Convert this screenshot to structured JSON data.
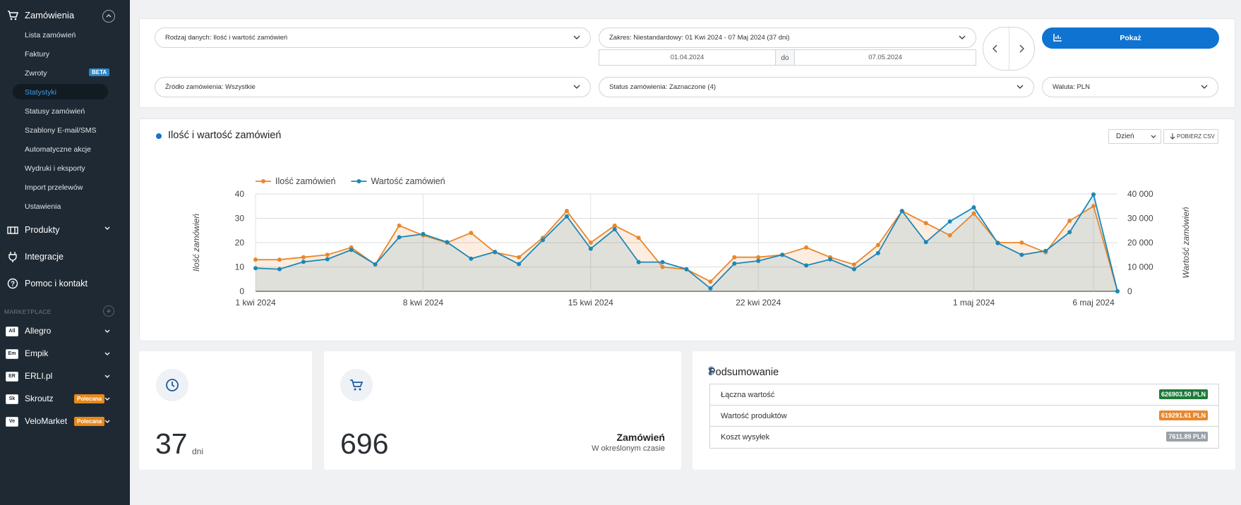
{
  "sidebar": {
    "section": {
      "label": "Zamówienia"
    },
    "sub_items": [
      {
        "label": "Lista zamówień"
      },
      {
        "label": "Faktury"
      },
      {
        "label": "Zwroty",
        "badge": "BETA"
      },
      {
        "label": "Statystyki",
        "active": true
      },
      {
        "label": "Statusy zamówień"
      },
      {
        "label": "Szablony E-mail/SMS"
      },
      {
        "label": "Automatyczne akcje"
      },
      {
        "label": "Wydruki i eksporty"
      },
      {
        "label": "Import przelewów"
      },
      {
        "label": "Ustawienia"
      }
    ],
    "main_items": [
      {
        "label": "Produkty",
        "icon": "products-icon"
      },
      {
        "label": "Integracje",
        "icon": "plug-icon"
      },
      {
        "label": "Pomoc i kontakt",
        "icon": "help-icon"
      }
    ],
    "marketplace_header": "MARKETPLACE",
    "marketplaces": [
      {
        "abbr": "All",
        "label": "Allegro"
      },
      {
        "abbr": "Em",
        "label": "Empik"
      },
      {
        "abbr": "ER",
        "label": "ERLI.pl"
      },
      {
        "abbr": "Sk",
        "label": "Skroutz",
        "badge": "Polecana"
      },
      {
        "abbr": "Ve",
        "label": "VeloMarket",
        "badge": "Polecana"
      }
    ]
  },
  "filters": {
    "data_type": "Rodzaj danych: Ilość i wartość zamówień",
    "range": "Zakres: Niestandardowy: 01 Kwi 2024 - 07 Maj 2024 (37 dni)",
    "date_from": "01.04.2024",
    "date_sep": "do",
    "date_to": "07.05.2024",
    "show_button": "Pokaż",
    "source": "Źródło zamówienia: Wszystkie",
    "status": "Status zamówienia: Zaznaczone (4)",
    "currency": "Waluta: PLN"
  },
  "chart_card": {
    "title": "Ilość i wartość zamówień",
    "period": "Dzień",
    "csv_button": "POBIERZ CSV"
  },
  "chart_data": {
    "type": "line",
    "x": [
      "2024-04-01",
      "2024-04-02",
      "2024-04-03",
      "2024-04-04",
      "2024-04-05",
      "2024-04-06",
      "2024-04-07",
      "2024-04-08",
      "2024-04-09",
      "2024-04-10",
      "2024-04-11",
      "2024-04-12",
      "2024-04-13",
      "2024-04-14",
      "2024-04-15",
      "2024-04-16",
      "2024-04-17",
      "2024-04-18",
      "2024-04-19",
      "2024-04-20",
      "2024-04-21",
      "2024-04-22",
      "2024-04-23",
      "2024-04-24",
      "2024-04-25",
      "2024-04-26",
      "2024-04-27",
      "2024-04-28",
      "2024-04-29",
      "2024-04-30",
      "2024-05-01",
      "2024-05-02",
      "2024-05-03",
      "2024-05-04",
      "2024-05-05",
      "2024-05-06",
      "2024-05-07"
    ],
    "series": [
      {
        "name": "Ilość zamówień",
        "axis": "left",
        "color": "#e8872c",
        "values": [
          13,
          13,
          14,
          15,
          18,
          11,
          27,
          23,
          20,
          24,
          16,
          14,
          22,
          33,
          20,
          27,
          22,
          10,
          9,
          4,
          14,
          14,
          15,
          18,
          14,
          11,
          19,
          33,
          28,
          23,
          32,
          20,
          20,
          16,
          29,
          35,
          0
        ]
      },
      {
        "name": "Wartość zamówień",
        "axis": "right",
        "color": "#1b87b8",
        "values": [
          9500,
          9100,
          12100,
          13200,
          17000,
          11100,
          22200,
          23500,
          20200,
          13400,
          16200,
          11200,
          21100,
          30800,
          17500,
          25500,
          12000,
          12000,
          9100,
          1200,
          11400,
          12500,
          15000,
          10600,
          13100,
          9100,
          15700,
          33000,
          20200,
          28700,
          34500,
          19800,
          15000,
          16600,
          24300,
          39800,
          0
        ]
      }
    ],
    "x_ticks": [
      "1 kwi 2024",
      "8 kwi 2024",
      "15 kwi 2024",
      "22 kwi 2024",
      "1 maj 2024",
      "6 maj 2024"
    ],
    "ylabel_left": "Ilość zamówień",
    "ylabel_right": "Wartość zamówień",
    "ylim_left": [
      0,
      40
    ],
    "ylim_right": [
      0,
      40000
    ],
    "yticks_left": [
      "0",
      "10",
      "20",
      "30",
      "40"
    ],
    "yticks_right": [
      "0",
      "10 000",
      "20 000",
      "30 000",
      "40 000"
    ],
    "legend": "top-left",
    "grid": true
  },
  "stats": {
    "days_value": "37",
    "days_unit": "dni",
    "orders_value": "696",
    "orders_title": "Zamówień",
    "orders_sub": "W określonym czasie"
  },
  "summary": {
    "title": "Podsumowanie",
    "rows": [
      {
        "label": "Łączna wartość",
        "value": "626903.50 PLN",
        "color": "#1f7a3a"
      },
      {
        "label": "Wartość produktów",
        "value": "619291.61 PLN",
        "color": "#e8872c"
      },
      {
        "label": "Koszt wysyłek",
        "value": "7611.89 PLN",
        "color": "#9aa1a8"
      }
    ]
  }
}
